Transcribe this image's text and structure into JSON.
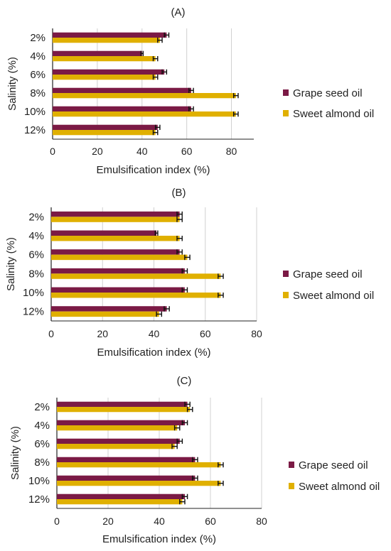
{
  "colors": {
    "grape": "#7b1a45",
    "almond": "#e0b000",
    "grid": "#d0d0d0",
    "axis": "#222222",
    "error": "#111111"
  },
  "chart_data": [
    {
      "type": "bar",
      "orientation": "horizontal",
      "title": "(A)",
      "categories": [
        "2%",
        "4%",
        "6%",
        "8%",
        "10%",
        "12%"
      ],
      "xlabel": "Emulsification index (%)",
      "ylabel": "Salinity (%)",
      "xlim": [
        0,
        90
      ],
      "xticks": [
        0,
        20,
        40,
        60,
        80
      ],
      "grid": "vertical",
      "legend_position": "right",
      "series": [
        {
          "name": "Grape seed oil",
          "values": [
            51,
            40,
            50,
            62,
            62,
            47
          ],
          "errors": [
            1,
            0.5,
            1,
            1,
            1,
            1
          ]
        },
        {
          "name": "Sweet almond oil",
          "values": [
            48,
            46,
            46,
            82,
            82,
            46
          ],
          "errors": [
            1,
            1,
            1,
            1,
            1,
            1
          ]
        }
      ]
    },
    {
      "type": "bar",
      "orientation": "horizontal",
      "title": "(B)",
      "categories": [
        "2%",
        "4%",
        "6%",
        "8%",
        "10%",
        "12%"
      ],
      "xlabel": "Emulsification index (%)",
      "ylabel": "Salinity (%)",
      "xlim": [
        0,
        80
      ],
      "xticks": [
        0,
        20,
        40,
        60,
        80
      ],
      "grid": "vertical",
      "legend_position": "right",
      "series": [
        {
          "name": "Grape seed oil",
          "values": [
            50,
            41,
            50,
            52,
            52,
            45
          ],
          "errors": [
            1,
            0.5,
            1,
            1,
            1,
            1
          ]
        },
        {
          "name": "Sweet almond oil",
          "values": [
            50,
            50,
            53,
            66,
            66,
            42
          ],
          "errors": [
            1,
            1,
            1,
            1,
            1,
            1
          ]
        }
      ]
    },
    {
      "type": "bar",
      "orientation": "horizontal",
      "title": "(C)",
      "categories": [
        "2%",
        "4%",
        "6%",
        "8%",
        "10%",
        "12%"
      ],
      "xlabel": "Emulsification index (%)",
      "ylabel": "Salinity (%)",
      "xlim": [
        0,
        80
      ],
      "xticks": [
        0,
        20,
        40,
        60,
        80
      ],
      "grid": "vertical",
      "legend_position": "right",
      "series": [
        {
          "name": "Grape seed oil",
          "values": [
            51,
            50,
            48,
            54,
            54,
            50
          ],
          "errors": [
            1,
            1,
            1,
            1,
            1,
            1
          ]
        },
        {
          "name": "Sweet almond oil",
          "values": [
            52,
            47,
            46,
            64,
            64,
            49
          ],
          "errors": [
            1,
            1,
            1,
            1,
            1,
            1
          ]
        }
      ]
    }
  ]
}
